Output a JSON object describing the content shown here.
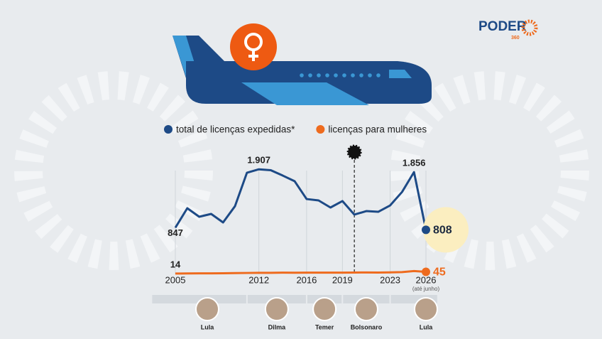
{
  "chart_data": {
    "type": "line",
    "brand": {
      "name": "PODER",
      "suffix": "360"
    },
    "x": [
      2005,
      2006,
      2007,
      2008,
      2009,
      2010,
      2011,
      2012,
      2013,
      2014,
      2015,
      2016,
      2017,
      2018,
      2019,
      2020,
      2021,
      2022,
      2023,
      2024,
      2025,
      2026
    ],
    "xlim": [
      2005,
      2026
    ],
    "xticks": [
      2005,
      2012,
      2016,
      2019,
      2023,
      2026
    ],
    "xtick_note": "(até junho)",
    "ylim": [
      0,
      2000
    ],
    "series": [
      {
        "name": "total de licenças expedidas*",
        "color": "#1d4a86",
        "values": [
          847,
          1200,
          1045,
          1097,
          942,
          1238,
          1845,
          1907,
          1890,
          1793,
          1690,
          1367,
          1342,
          1213,
          1330,
          1084,
          1148,
          1135,
          1251,
          1496,
          1856,
          808
        ],
        "value_labels": [
          "847",
          null,
          null,
          null,
          null,
          null,
          null,
          "1.907",
          null,
          null,
          null,
          null,
          null,
          null,
          null,
          null,
          null,
          null,
          null,
          null,
          "1.856",
          "808"
        ]
      },
      {
        "name": "licenças para mulheres",
        "color": "#ee6b1e",
        "values": [
          14,
          16,
          17,
          17,
          20,
          22,
          25,
          27,
          28,
          30,
          29,
          30,
          31,
          30,
          31,
          33,
          34,
          33,
          36,
          40,
          60,
          45
        ],
        "value_labels": [
          "14",
          null,
          null,
          null,
          null,
          null,
          null,
          null,
          null,
          null,
          null,
          null,
          null,
          null,
          null,
          null,
          null,
          null,
          null,
          null,
          null,
          "45"
        ]
      }
    ],
    "covid_marker_x": 2020,
    "presidents": [
      {
        "name": "Lula",
        "from": 2003,
        "to": 2011
      },
      {
        "name": "Dilma",
        "from": 2011,
        "to": 2016
      },
      {
        "name": "Temer",
        "from": 2016,
        "to": 2019
      },
      {
        "name": "Bolsonaro",
        "from": 2019,
        "to": 2023
      },
      {
        "name": "Lula",
        "from": 2023,
        "to": 2027
      }
    ]
  }
}
